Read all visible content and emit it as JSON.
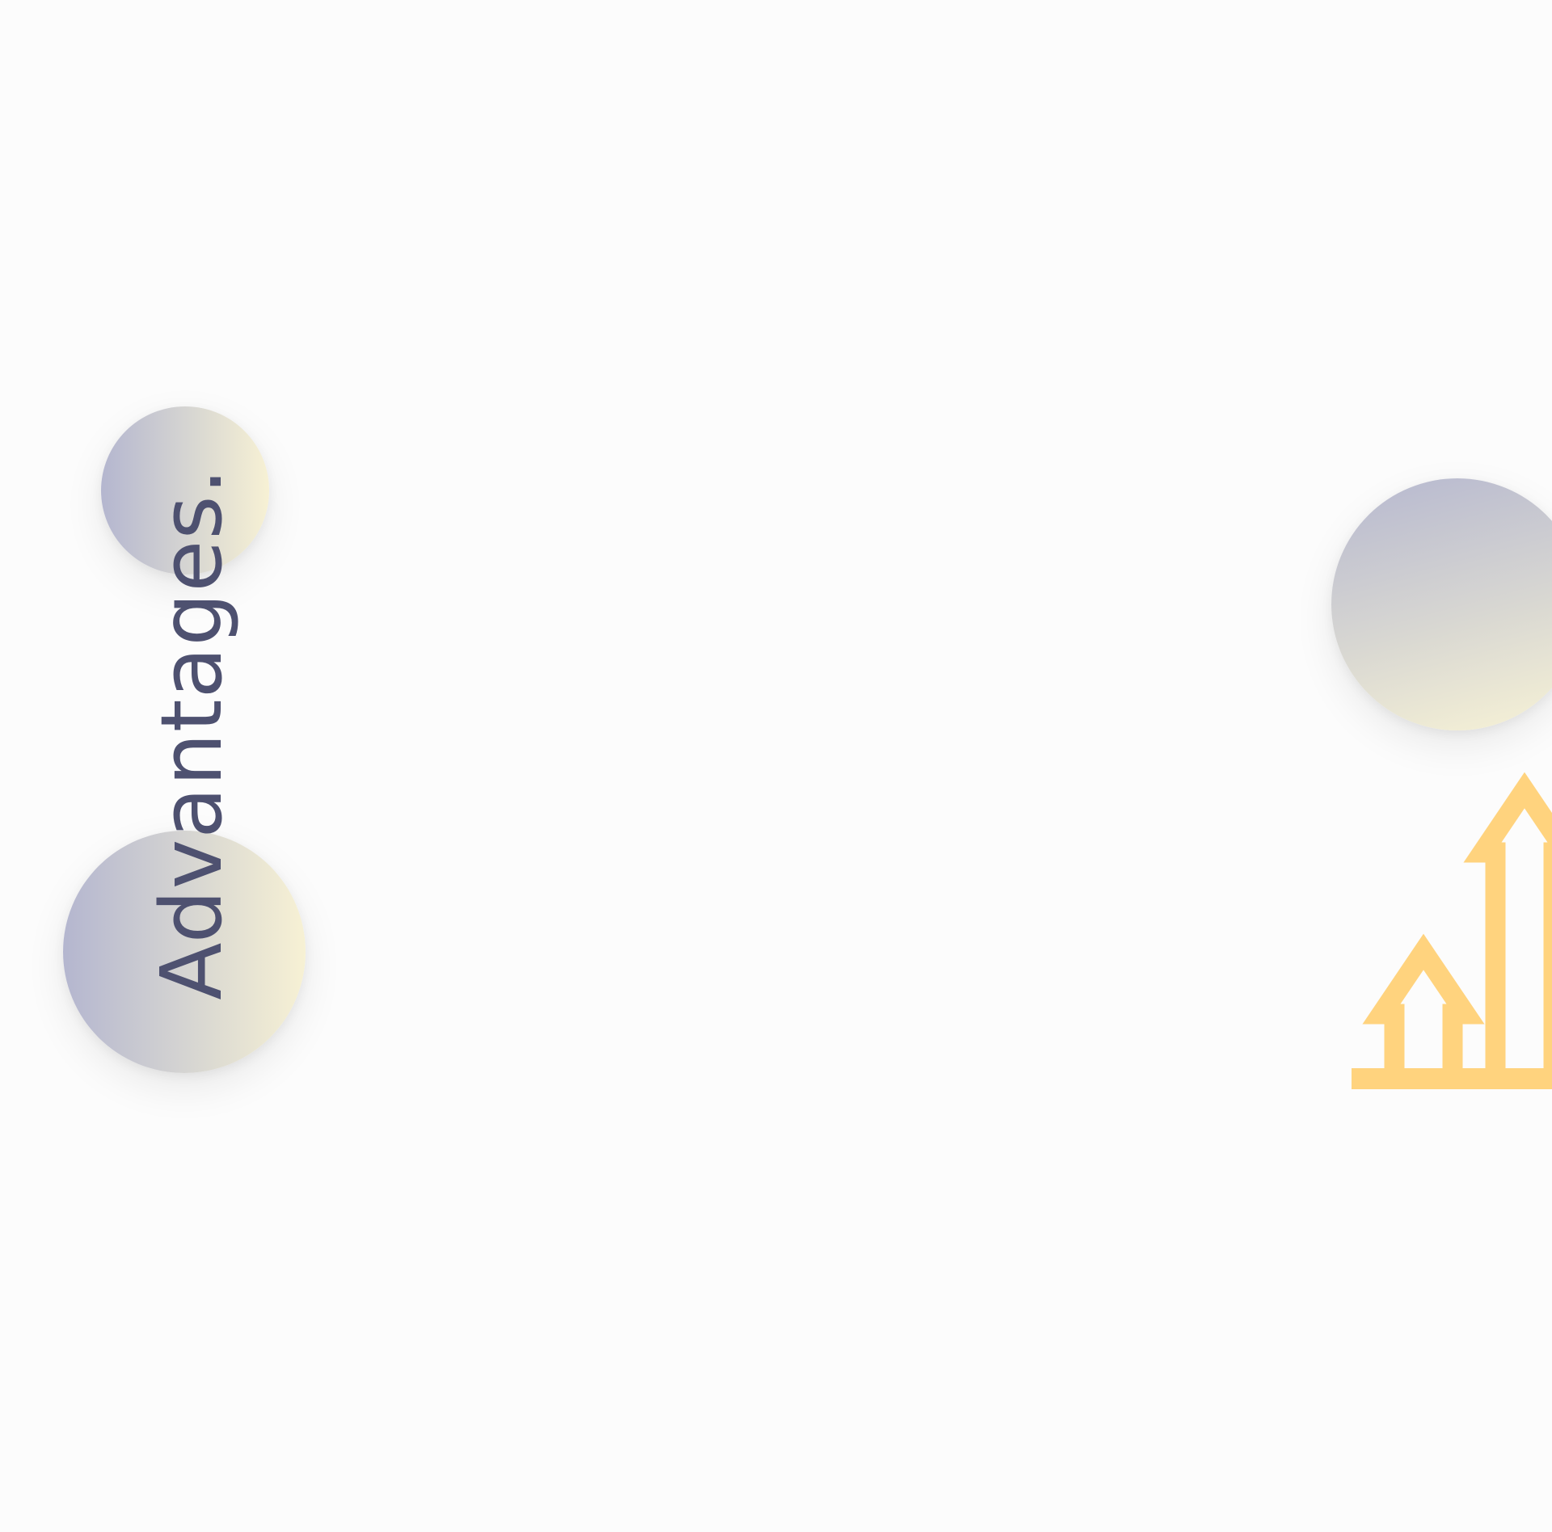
{
  "heading": {
    "text": "Advantages."
  },
  "icons": {
    "growth": "growth-arrows-icon"
  },
  "colors": {
    "background": "#fcfcfc",
    "heading": "#4e5170",
    "accent": "#ffd37e",
    "bubble_gradient_start": "#b4b6cf",
    "bubble_gradient_end": "#f7f1d4"
  }
}
